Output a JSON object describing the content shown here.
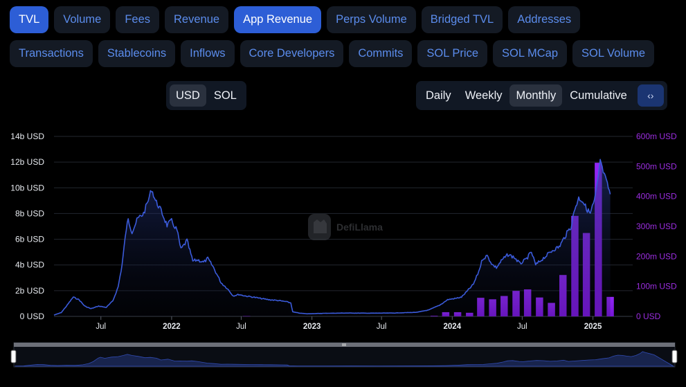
{
  "tabs_row1": [
    {
      "label": "TVL",
      "active": true
    },
    {
      "label": "Volume",
      "active": false
    },
    {
      "label": "Fees",
      "active": false
    },
    {
      "label": "Revenue",
      "active": false
    },
    {
      "label": "App Revenue",
      "active": true
    },
    {
      "label": "Perps Volume",
      "active": false
    },
    {
      "label": "Bridged TVL",
      "active": false
    },
    {
      "label": "Addresses",
      "active": false
    }
  ],
  "tabs_row2": [
    {
      "label": "Transactions",
      "active": false
    },
    {
      "label": "Stablecoins",
      "active": false
    },
    {
      "label": "Inflows",
      "active": false
    },
    {
      "label": "Core Developers",
      "active": false
    },
    {
      "label": "Commits",
      "active": false
    },
    {
      "label": "SOL Price",
      "active": false
    },
    {
      "label": "SOL MCap",
      "active": false
    },
    {
      "label": "SOL Volume",
      "active": false
    }
  ],
  "denomination": {
    "options": [
      "USD",
      "SOL"
    ],
    "selected": "USD"
  },
  "period": {
    "options": [
      "Daily",
      "Weekly",
      "Monthly",
      "Cumulative"
    ],
    "selected": "Monthly",
    "embed_icon": "code-brackets-icon"
  },
  "watermark": "DefiLlama",
  "colors": {
    "tvl_line": "#3b5bdb",
    "bars": "#8a1ff0",
    "active_tab": "#2d5ed6",
    "right_axis": "#9b2de0"
  },
  "chart_data": {
    "type": "line",
    "x_range": [
      "2021-03-01",
      "2025-03-31"
    ],
    "y_left": {
      "ticks": [
        "0 USD",
        "2b USD",
        "4b USD",
        "6b USD",
        "8b USD",
        "10b USD",
        "12b USD",
        "14b USD"
      ],
      "range": [
        0,
        14
      ]
    },
    "y_right": {
      "ticks": [
        "0 USD",
        "100m USD",
        "200m USD",
        "300m USD",
        "400m USD",
        "500m USD",
        "600m USD"
      ],
      "range": [
        0,
        600
      ]
    },
    "x_ticks": [
      {
        "label": "Jul",
        "date": "2021-07-01",
        "bold": false
      },
      {
        "label": "2022",
        "date": "2022-01-01",
        "bold": true
      },
      {
        "label": "Jul",
        "date": "2022-07-01",
        "bold": false
      },
      {
        "label": "2023",
        "date": "2023-01-01",
        "bold": true
      },
      {
        "label": "Jul",
        "date": "2023-07-01",
        "bold": false
      },
      {
        "label": "2024",
        "date": "2024-01-01",
        "bold": true
      },
      {
        "label": "Jul",
        "date": "2024-07-01",
        "bold": false
      },
      {
        "label": "2025",
        "date": "2025-01-01",
        "bold": true
      }
    ],
    "series": [
      {
        "name": "TVL",
        "axis": "left",
        "points": [
          [
            "2021-03-01",
            0.1
          ],
          [
            "2021-03-20",
            0.3
          ],
          [
            "2021-04-05",
            0.9
          ],
          [
            "2021-04-20",
            1.5
          ],
          [
            "2021-05-05",
            1.3
          ],
          [
            "2021-05-20",
            0.8
          ],
          [
            "2021-06-05",
            0.6
          ],
          [
            "2021-06-25",
            0.8
          ],
          [
            "2021-07-15",
            0.7
          ],
          [
            "2021-08-01",
            1.2
          ],
          [
            "2021-08-15",
            2.3
          ],
          [
            "2021-08-25",
            4.0
          ],
          [
            "2021-09-05",
            6.8
          ],
          [
            "2021-09-10",
            7.5
          ],
          [
            "2021-09-20",
            6.6
          ],
          [
            "2021-10-05",
            7.6
          ],
          [
            "2021-10-20",
            8.0
          ],
          [
            "2021-11-01",
            9.0
          ],
          [
            "2021-11-10",
            9.9
          ],
          [
            "2021-11-20",
            9.0
          ],
          [
            "2021-12-05",
            8.2
          ],
          [
            "2021-12-20",
            7.1
          ],
          [
            "2022-01-01",
            7.4
          ],
          [
            "2022-01-15",
            6.7
          ],
          [
            "2022-01-25",
            5.2
          ],
          [
            "2022-02-10",
            5.9
          ],
          [
            "2022-02-25",
            4.3
          ],
          [
            "2022-03-10",
            4.4
          ],
          [
            "2022-03-25",
            4.2
          ],
          [
            "2022-04-05",
            4.5
          ],
          [
            "2022-04-20",
            3.8
          ],
          [
            "2022-05-10",
            2.6
          ],
          [
            "2022-05-25",
            2.2
          ],
          [
            "2022-06-10",
            1.6
          ],
          [
            "2022-06-25",
            1.7
          ],
          [
            "2022-07-10",
            1.6
          ],
          [
            "2022-08-01",
            1.5
          ],
          [
            "2022-08-20",
            1.4
          ],
          [
            "2022-09-10",
            1.3
          ],
          [
            "2022-10-01",
            1.25
          ],
          [
            "2022-10-25",
            1.15
          ],
          [
            "2022-11-07",
            1.05
          ],
          [
            "2022-11-12",
            0.35
          ],
          [
            "2022-12-01",
            0.25
          ],
          [
            "2022-12-20",
            0.2
          ],
          [
            "2023-02-01",
            0.24
          ],
          [
            "2023-04-01",
            0.26
          ],
          [
            "2023-06-01",
            0.25
          ],
          [
            "2023-08-01",
            0.26
          ],
          [
            "2023-10-01",
            0.32
          ],
          [
            "2023-11-01",
            0.5
          ],
          [
            "2023-12-01",
            0.9
          ],
          [
            "2023-12-20",
            1.3
          ],
          [
            "2024-01-10",
            1.4
          ],
          [
            "2024-01-25",
            1.5
          ],
          [
            "2024-02-10",
            2.0
          ],
          [
            "2024-02-25",
            2.5
          ],
          [
            "2024-03-10",
            3.5
          ],
          [
            "2024-03-20",
            4.5
          ],
          [
            "2024-04-01",
            4.7
          ],
          [
            "2024-04-15",
            4.0
          ],
          [
            "2024-04-25",
            3.8
          ],
          [
            "2024-05-10",
            4.4
          ],
          [
            "2024-05-25",
            4.8
          ],
          [
            "2024-06-10",
            4.6
          ],
          [
            "2024-06-25",
            4.1
          ],
          [
            "2024-07-10",
            4.4
          ],
          [
            "2024-07-25",
            5.0
          ],
          [
            "2024-08-05",
            4.0
          ],
          [
            "2024-08-20",
            4.4
          ],
          [
            "2024-09-05",
            4.8
          ],
          [
            "2024-09-20",
            5.2
          ],
          [
            "2024-10-05",
            5.4
          ],
          [
            "2024-10-20",
            6.2
          ],
          [
            "2024-11-05",
            7.0
          ],
          [
            "2024-11-15",
            8.4
          ],
          [
            "2024-11-25",
            9.2
          ],
          [
            "2024-12-05",
            9.0
          ],
          [
            "2024-12-15",
            8.4
          ],
          [
            "2024-12-25",
            8.0
          ],
          [
            "2025-01-05",
            9.0
          ],
          [
            "2025-01-15",
            10.8
          ],
          [
            "2025-01-20",
            12.2
          ],
          [
            "2025-01-25",
            11.5
          ],
          [
            "2025-02-05",
            10.5
          ],
          [
            "2025-02-15",
            9.5
          ]
        ]
      },
      {
        "name": "App Revenue",
        "axis": "right",
        "type": "bar",
        "bars": [
          [
            "2022-07-15",
            1
          ],
          [
            "2023-11-15",
            2
          ],
          [
            "2023-12-15",
            14
          ],
          [
            "2024-01-15",
            14
          ],
          [
            "2024-02-15",
            12
          ],
          [
            "2024-03-15",
            62
          ],
          [
            "2024-04-15",
            57
          ],
          [
            "2024-05-15",
            68
          ],
          [
            "2024-06-15",
            85
          ],
          [
            "2024-07-15",
            90
          ],
          [
            "2024-08-15",
            63
          ],
          [
            "2024-09-15",
            45
          ],
          [
            "2024-10-15",
            138
          ],
          [
            "2024-11-15",
            335
          ],
          [
            "2024-12-15",
            278
          ],
          [
            "2025-01-15",
            512
          ],
          [
            "2025-02-15",
            65
          ]
        ]
      }
    ]
  }
}
